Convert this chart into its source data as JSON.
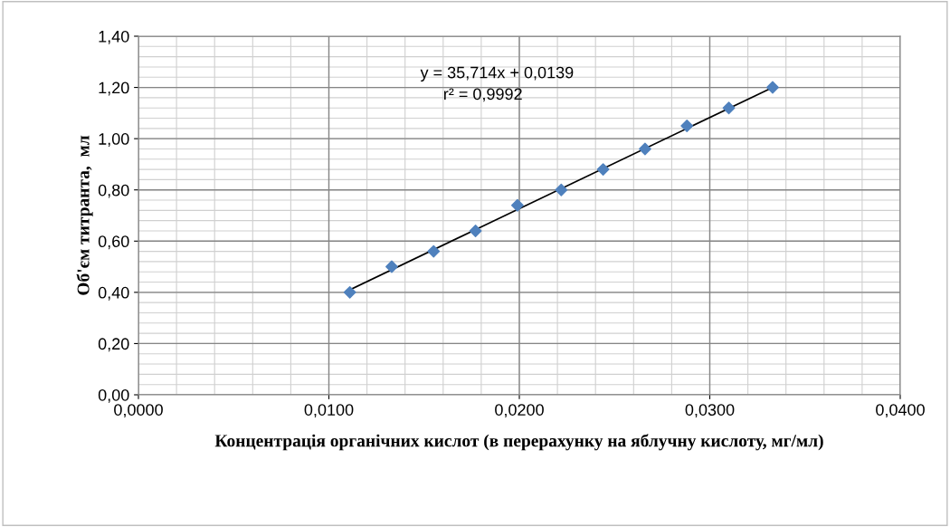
{
  "chart_data": {
    "type": "scatter",
    "xlabel": "Концентрація органічних кислот (в перерахунку на яблучну кислоту, мг/мл)",
    "ylabel": "Об'єм титранта,  мл",
    "x": [
      0.0111,
      0.0133,
      0.0155,
      0.0177,
      0.0199,
      0.0222,
      0.0244,
      0.0266,
      0.0288,
      0.031,
      0.0333
    ],
    "series": [
      {
        "color": "#4f81bd",
        "marker": "diamond",
        "values": [
          0.4,
          0.5,
          0.56,
          0.64,
          0.74,
          0.8,
          0.88,
          0.96,
          1.05,
          1.12,
          1.2
        ]
      },
      {
        "type": "line",
        "color": "#000000",
        "marker": "none",
        "x": [
          0.0111,
          0.0333
        ],
        "values": [
          0.41,
          1.2
        ]
      }
    ],
    "annotations": [
      "y = 35,714x + 0,0139",
      "r² = 0,9992"
    ],
    "xlim": [
      0,
      0.04
    ],
    "ylim": [
      0,
      1.4
    ],
    "xticks": [
      {
        "value": 0,
        "label": "0,0000"
      },
      {
        "value": 0.01,
        "label": "0,0100"
      },
      {
        "value": 0.02,
        "label": "0,0200"
      },
      {
        "value": 0.03,
        "label": "0,0300"
      },
      {
        "value": 0.04,
        "label": "0,0400"
      }
    ],
    "yticks": [
      {
        "value": 0,
        "label": "0,00"
      },
      {
        "value": 0.2,
        "label": "0,20"
      },
      {
        "value": 0.4,
        "label": "0,40"
      },
      {
        "value": 0.6,
        "label": "0,60"
      },
      {
        "value": 0.8,
        "label": "0,80"
      },
      {
        "value": 1.0,
        "label": "1,00"
      },
      {
        "value": 1.2,
        "label": "1,20"
      },
      {
        "value": 1.4,
        "label": "1,40"
      }
    ],
    "grid": true
  }
}
